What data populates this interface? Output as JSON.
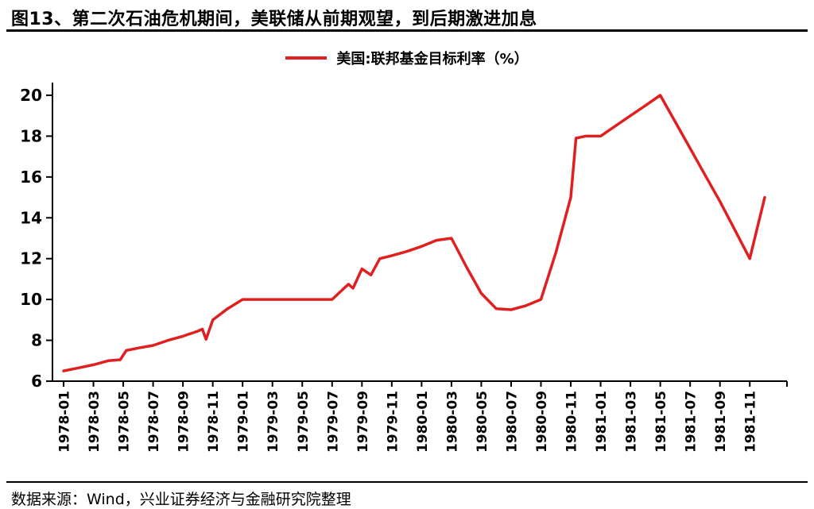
{
  "header": {
    "title": "图13、第二次石油危机期间，美联储从前期观望，到后期激进加息"
  },
  "legend": {
    "label": "美国:联邦基金目标利率（%）"
  },
  "footer": {
    "source": "数据来源：Wind，兴业证券经济与金融研究院整理"
  },
  "chart_data": {
    "type": "line",
    "title": "美国:联邦基金目标利率（%）",
    "xlabel": "",
    "ylabel": "",
    "ylim": [
      6,
      20
    ],
    "y_ticks": [
      6,
      8,
      10,
      12,
      14,
      16,
      18,
      20
    ],
    "grid": false,
    "legend_position": "top",
    "x_tick_step_months": 2,
    "x_tick_labels": [
      "1978-01",
      "1978-03",
      "1978-05",
      "1978-07",
      "1978-09",
      "1978-11",
      "1979-01",
      "1979-03",
      "1979-05",
      "1979-07",
      "1979-09",
      "1979-11",
      "1980-01",
      "1980-03",
      "1980-05",
      "1980-07",
      "1980-09",
      "1980-11",
      "1981-01",
      "1981-03",
      "1981-05",
      "1981-07",
      "1981-09",
      "1981-11"
    ],
    "series": [
      {
        "name": "美国:联邦基金目标利率（%）",
        "color": "#e02020",
        "points_note": "x = months since 1978-01, y = target rate %",
        "points": [
          [
            0,
            6.5
          ],
          [
            1,
            6.65
          ],
          [
            2,
            6.8
          ],
          [
            3,
            7.0
          ],
          [
            3.8,
            7.05
          ],
          [
            4.2,
            7.5
          ],
          [
            5,
            7.62
          ],
          [
            6,
            7.75
          ],
          [
            7,
            8.0
          ],
          [
            8,
            8.2
          ],
          [
            9,
            8.45
          ],
          [
            9.3,
            8.55
          ],
          [
            9.55,
            8.05
          ],
          [
            10,
            9.0
          ],
          [
            11,
            9.55
          ],
          [
            12,
            10.0
          ],
          [
            18,
            10.0
          ],
          [
            18.8,
            10.55
          ],
          [
            19.1,
            10.75
          ],
          [
            19.4,
            10.55
          ],
          [
            20,
            11.5
          ],
          [
            20.6,
            11.2
          ],
          [
            21.2,
            12.0
          ],
          [
            22,
            12.15
          ],
          [
            23,
            12.35
          ],
          [
            24,
            12.6
          ],
          [
            25,
            12.9
          ],
          [
            26,
            13.0
          ],
          [
            27,
            11.6
          ],
          [
            28,
            10.3
          ],
          [
            29,
            9.55
          ],
          [
            30,
            9.5
          ],
          [
            31,
            9.7
          ],
          [
            32,
            10.0
          ],
          [
            33,
            12.3
          ],
          [
            34,
            15.0
          ],
          [
            34.35,
            17.9
          ],
          [
            35,
            18.0
          ],
          [
            36,
            18.0
          ],
          [
            37,
            18.5
          ],
          [
            38,
            19.0
          ],
          [
            39,
            19.5
          ],
          [
            40,
            20.0
          ],
          [
            41,
            18.7
          ],
          [
            42,
            17.4
          ],
          [
            43,
            16.1
          ],
          [
            44,
            14.8
          ],
          [
            45,
            13.4
          ],
          [
            46,
            12.0
          ],
          [
            47,
            15.0
          ]
        ]
      }
    ]
  }
}
